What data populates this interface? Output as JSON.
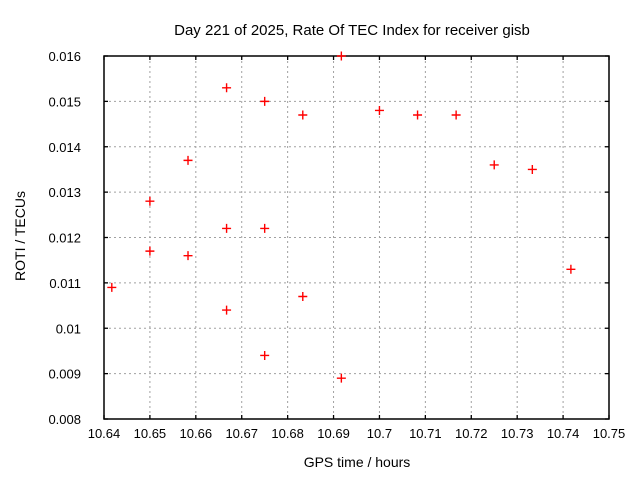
{
  "chart_data": {
    "type": "scatter",
    "title": "Day 221 of 2025, Rate Of TEC Index for receiver gisb",
    "xlabel": "GPS time / hours",
    "ylabel": "ROTI / TECUs",
    "xlim": [
      10.64,
      10.75
    ],
    "ylim": [
      0.008,
      0.016
    ],
    "xticks": [
      10.64,
      10.65,
      10.66,
      10.67,
      10.68,
      10.69,
      10.7,
      10.71,
      10.72,
      10.73,
      10.74,
      10.75
    ],
    "xtick_labels": [
      "10.64",
      "10.65",
      "10.66",
      "10.67",
      "10.68",
      "10.69",
      "10.7",
      "10.71",
      "10.72",
      "10.73",
      "10.74",
      "10.75"
    ],
    "yticks": [
      0.008,
      0.009,
      0.01,
      0.011,
      0.012,
      0.013,
      0.014,
      0.015,
      0.016
    ],
    "ytick_labels": [
      "0.008",
      "0.009",
      "0.01",
      "0.011",
      "0.012",
      "0.013",
      "0.014",
      "0.015",
      "0.016"
    ],
    "grid": true,
    "legend_position": "none",
    "marker": {
      "shape": "plus",
      "color": "#ff0000",
      "size": 9,
      "stroke_width": 1.4
    },
    "colors": {
      "background": "#ffffff",
      "border": "#000000",
      "grid": "#a0a0a0",
      "text": "#000000"
    },
    "series": [
      {
        "name": "ROTI",
        "points": [
          [
            10.6417,
            0.0109
          ],
          [
            10.65,
            0.0128
          ],
          [
            10.65,
            0.0117
          ],
          [
            10.6583,
            0.0137
          ],
          [
            10.6583,
            0.0116
          ],
          [
            10.6667,
            0.0153
          ],
          [
            10.6667,
            0.0122
          ],
          [
            10.6667,
            0.0104
          ],
          [
            10.675,
            0.015
          ],
          [
            10.675,
            0.0122
          ],
          [
            10.675,
            0.0094
          ],
          [
            10.6833,
            0.0147
          ],
          [
            10.6833,
            0.0107
          ],
          [
            10.6917,
            0.016
          ],
          [
            10.6917,
            0.0089
          ],
          [
            10.7,
            0.0148
          ],
          [
            10.7083,
            0.0147
          ],
          [
            10.7167,
            0.0147
          ],
          [
            10.725,
            0.0136
          ],
          [
            10.7333,
            0.0135
          ],
          [
            10.7417,
            0.0113
          ]
        ]
      }
    ]
  }
}
